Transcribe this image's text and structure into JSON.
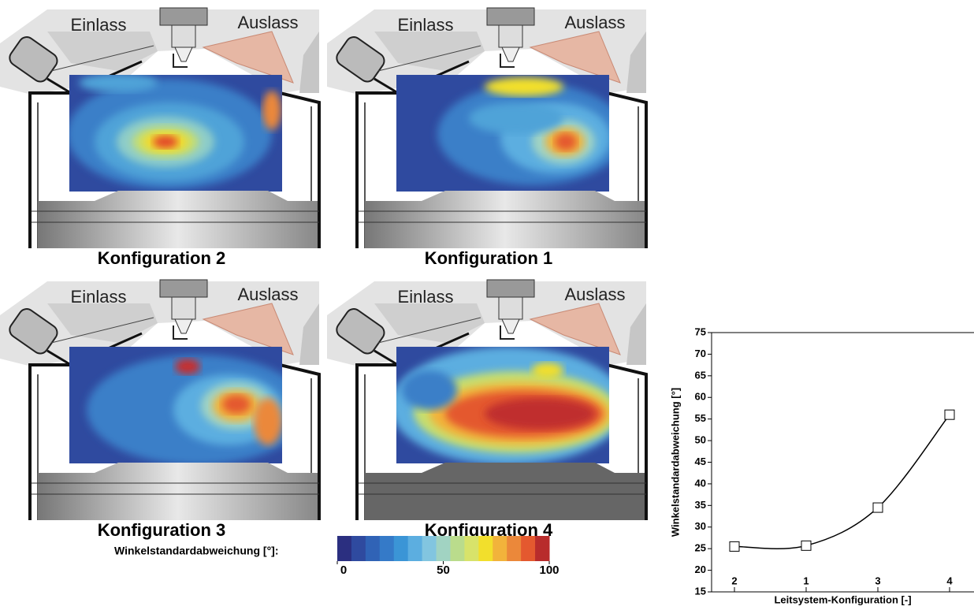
{
  "panels": [
    {
      "inlet": "Einlass",
      "outlet": "Auslass",
      "label": "Konfiguration 2"
    },
    {
      "inlet": "Einlass",
      "outlet": "Auslass",
      "label": "Konfiguration 1"
    },
    {
      "inlet": "Einlass",
      "outlet": "Auslass",
      "label": "Konfiguration 3"
    },
    {
      "inlet": "Einlass",
      "outlet": "Auslass",
      "label": "Konfiguration 4"
    }
  ],
  "colorbar": {
    "label": "Winkelstandardabweichung [°]:",
    "colors": [
      "#2b2f80",
      "#2f4a9f",
      "#3063b6",
      "#357ac8",
      "#3b95d6",
      "#5caee0",
      "#82c5e0",
      "#a1d3c2",
      "#badc8c",
      "#d8e36a",
      "#f2df2c",
      "#f2b33b",
      "#eb883a",
      "#e4592f",
      "#b82c2c"
    ],
    "lim": [
      0,
      100
    ],
    "ticks": [
      0,
      50,
      100
    ]
  },
  "chart_data": {
    "type": "line",
    "x_label": "Leitsystem-Konfiguration [-]",
    "y_label": "Winkelstandardabweichung [°]",
    "categories": [
      "2",
      "1",
      "3",
      "4"
    ],
    "values": [
      25.5,
      25.7,
      34.5,
      56
    ],
    "color": "#000000",
    "ylim": [
      15,
      75
    ],
    "yticks": [
      15,
      20,
      25,
      30,
      35,
      40,
      45,
      50,
      55,
      60,
      65,
      70,
      75
    ]
  }
}
